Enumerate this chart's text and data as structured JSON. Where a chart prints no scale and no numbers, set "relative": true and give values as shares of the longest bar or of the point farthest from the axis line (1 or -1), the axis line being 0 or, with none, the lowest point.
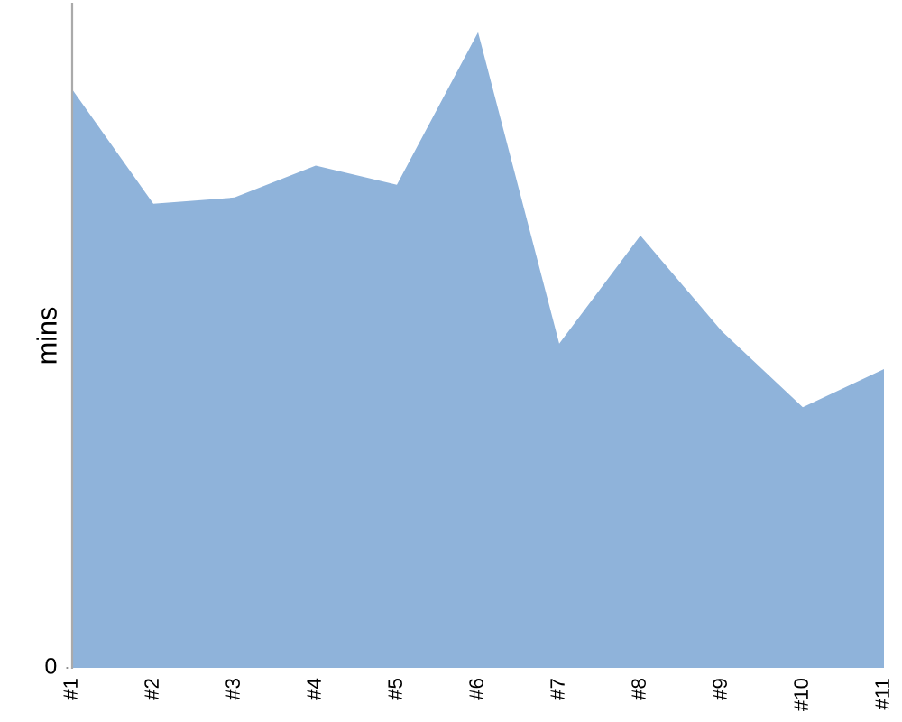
{
  "chart_data": {
    "type": "area",
    "relative": true,
    "ylabel": "mins",
    "categories": [
      "#1",
      "#2",
      "#3",
      "#4",
      "#5",
      "#6",
      "#7",
      "#8",
      "#9",
      "#10",
      "#11"
    ],
    "series": [
      {
        "color": "#8fb3da",
        "values": [
          0.91,
          0.73,
          0.74,
          0.79,
          0.76,
          1,
          0.51,
          0.68,
          0.53,
          0.41,
          0.47
        ]
      }
    ],
    "annotations": [
      "0"
    ],
    "legend": false
  }
}
